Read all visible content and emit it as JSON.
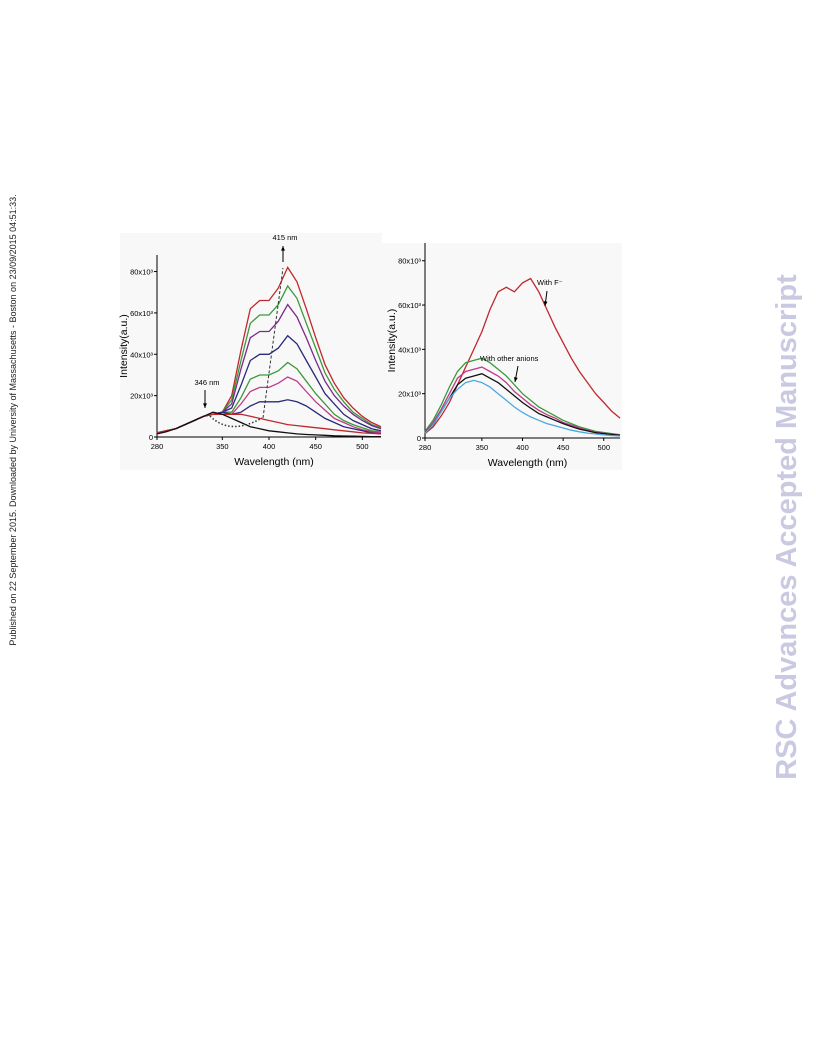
{
  "side_note": "Published on 22 September 2015. Downloaded by University of Massachusetts - Boston on 23/09/2015 04:51:33.",
  "watermark": "RSC Advances Accepted Manuscript",
  "chart_data": [
    {
      "type": "line",
      "x_label": "Wavelength (nm)",
      "y_label": "Intensity(a.u.)",
      "annotations": [
        "415 nm",
        "346 nm"
      ],
      "x": [
        280,
        290,
        300,
        310,
        320,
        330,
        340,
        350,
        360,
        370,
        380,
        390,
        400,
        410,
        420,
        430,
        440,
        450,
        460,
        470,
        480,
        490,
        500,
        510,
        520
      ],
      "xlim": [
        280,
        520
      ],
      "xticks": [
        280,
        350,
        400,
        450,
        500
      ],
      "ylim": [
        0,
        88000
      ],
      "yticks": [
        0,
        {
          "value": 20000,
          "label": "20x10³"
        },
        {
          "value": 40000,
          "label": "40x10³"
        },
        {
          "value": 60000,
          "label": "60x10³"
        },
        {
          "value": 80000,
          "label": "80x10³"
        }
      ],
      "series": [
        {
          "color": "#c0282d",
          "values": [
            2000,
            3000,
            4000,
            6000,
            8000,
            10000,
            11000,
            12000,
            20000,
            42000,
            62000,
            66000,
            66000,
            72000,
            82000,
            75000,
            62000,
            48000,
            35000,
            26000,
            19000,
            14000,
            10000,
            7000,
            5000
          ]
        },
        {
          "color": "#3a9a3a",
          "values": [
            2000,
            3000,
            4000,
            6000,
            8000,
            10000,
            11000,
            12000,
            18000,
            37000,
            55000,
            59000,
            59000,
            64000,
            73000,
            67000,
            55000,
            43000,
            31000,
            23000,
            17000,
            12000,
            9000,
            6000,
            4500
          ]
        },
        {
          "color": "#7a2a8a",
          "values": [
            2000,
            3000,
            4000,
            6000,
            8000,
            10000,
            11000,
            12000,
            16000,
            33000,
            48000,
            51000,
            51000,
            56000,
            64000,
            58000,
            48000,
            37000,
            27000,
            20000,
            15000,
            11000,
            8000,
            5500,
            4000
          ]
        },
        {
          "color": "#2a2a7a",
          "values": [
            2000,
            3000,
            4000,
            6000,
            8000,
            10000,
            11000,
            12000,
            14000,
            25000,
            37000,
            40000,
            40000,
            43000,
            49000,
            45000,
            37000,
            29000,
            21000,
            16000,
            11000,
            8000,
            6000,
            4000,
            3000
          ]
        },
        {
          "color": "#3a9a3a",
          "values": [
            2000,
            3000,
            4000,
            6000,
            8000,
            10000,
            11000,
            12000,
            12000,
            19000,
            28000,
            30000,
            30000,
            32000,
            36000,
            33000,
            27000,
            21000,
            16000,
            11000,
            8000,
            6000,
            4500,
            3000,
            2500
          ]
        },
        {
          "color": "#c03a8a",
          "values": [
            2000,
            3000,
            4000,
            6000,
            8000,
            10000,
            11000,
            12000,
            11000,
            16000,
            22000,
            24000,
            24000,
            26000,
            29000,
            27000,
            22000,
            17000,
            13000,
            9000,
            7000,
            5000,
            3500,
            2500,
            2000
          ]
        },
        {
          "color": "#2a2a7a",
          "values": [
            2000,
            3000,
            4000,
            6000,
            8000,
            10000,
            11000,
            12000,
            11000,
            12000,
            15000,
            17000,
            17000,
            17000,
            18000,
            17000,
            15000,
            12000,
            9000,
            7000,
            5000,
            4000,
            3000,
            2000,
            1500
          ]
        },
        {
          "color": "#c0282d",
          "values": [
            2000,
            3000,
            4000,
            6000,
            8000,
            10000,
            11000,
            11000,
            11000,
            11000,
            10000,
            9000,
            8000,
            7000,
            6000,
            5500,
            5000,
            4500,
            4000,
            3500,
            3000,
            2500,
            2000,
            1800,
            1500
          ]
        },
        {
          "color": "#111111",
          "values": [
            1500,
            2500,
            4000,
            6000,
            8000,
            10000,
            12000,
            11000,
            9000,
            7000,
            5000,
            4000,
            3000,
            2500,
            2000,
            1500,
            1200,
            1000,
            800,
            600,
            500,
            400,
            300,
            200,
            200
          ]
        }
      ]
    },
    {
      "type": "line",
      "x_label": "Wavelength (nm)",
      "y_label": "Intensity(a.u.)",
      "annotations": [
        "With F⁻",
        "With other anions"
      ],
      "x": [
        280,
        290,
        300,
        310,
        320,
        330,
        340,
        350,
        360,
        370,
        380,
        390,
        400,
        410,
        420,
        430,
        440,
        450,
        460,
        470,
        480,
        490,
        500,
        510,
        520
      ],
      "xlim": [
        280,
        520
      ],
      "xticks": [
        280,
        350,
        400,
        450,
        500
      ],
      "ylim": [
        0,
        88000
      ],
      "yticks": [
        0,
        {
          "value": 20000,
          "label": "20x10³"
        },
        {
          "value": 40000,
          "label": "40x10³"
        },
        {
          "value": 60000,
          "label": "60x10³"
        },
        {
          "value": 80000,
          "label": "80x10³"
        }
      ],
      "series": [
        {
          "color": "#c0282d",
          "values": [
            2000,
            5000,
            10000,
            16000,
            24000,
            32000,
            40000,
            48000,
            58000,
            66000,
            68000,
            66000,
            70000,
            72000,
            66000,
            58000,
            50000,
            43000,
            36000,
            30000,
            25000,
            20000,
            16000,
            12000,
            9000
          ]
        },
        {
          "color": "#3a9a3a",
          "values": [
            3000,
            8000,
            15000,
            23000,
            30000,
            34000,
            35000,
            36000,
            34000,
            31000,
            28000,
            24000,
            20000,
            17000,
            14000,
            12000,
            10000,
            8000,
            6500,
            5000,
            4000,
            3000,
            2500,
            2000,
            1500
          ]
        },
        {
          "color": "#c03a8a",
          "values": [
            2700,
            7000,
            13000,
            20000,
            27000,
            30000,
            31000,
            32000,
            30000,
            28000,
            25000,
            21000,
            18000,
            15000,
            12500,
            10500,
            9000,
            7000,
            5800,
            4500,
            3500,
            2700,
            2200,
            1800,
            1300
          ]
        },
        {
          "color": "#111111",
          "values": [
            2400,
            6000,
            12000,
            18000,
            24000,
            27000,
            28000,
            29000,
            27000,
            25000,
            22000,
            19000,
            16000,
            13500,
            11000,
            9500,
            8000,
            6500,
            5200,
            4000,
            3200,
            2400,
            2000,
            1600,
            1200
          ]
        },
        {
          "color": "#4aa8e0",
          "values": [
            2200,
            6000,
            12000,
            18000,
            22000,
            25000,
            26000,
            25000,
            23000,
            20000,
            17000,
            14000,
            11500,
            9500,
            8000,
            6500,
            5500,
            4500,
            3500,
            2800,
            2200,
            1800,
            1400,
            1100,
            900
          ]
        }
      ]
    }
  ]
}
